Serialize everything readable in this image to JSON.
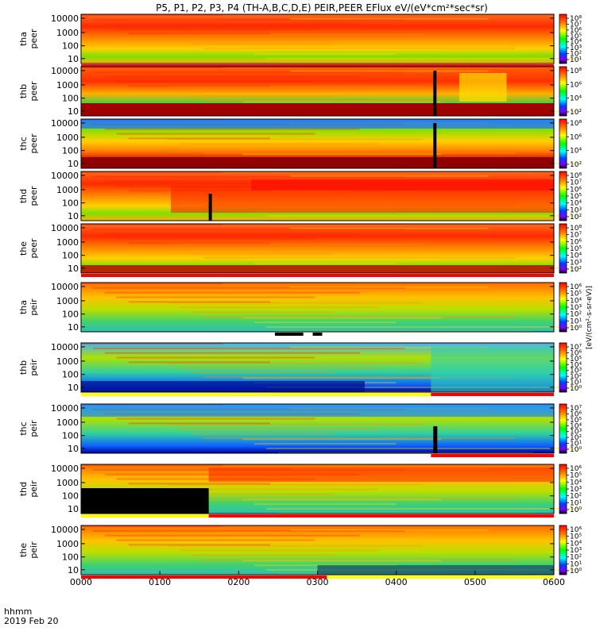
{
  "title": "P5, P1, P2, P3, P4 (TH-A,B,C,D,E) PEIR,PEER EFlux eV/(eV*cm²*sec*sr)",
  "footer": {
    "axis_label": "hhmm",
    "date": "2019 Feb 20"
  },
  "colorbar_label": "[eV/(cm²-s-sr-eV)]",
  "chart_data": {
    "type": "heatmap",
    "x": {
      "ticks": [
        "0000",
        "0100",
        "0200",
        "0300",
        "0400",
        "0500",
        "0600"
      ],
      "range": [
        0,
        360
      ],
      "unit": "minutes"
    },
    "panels": [
      {
        "line1": "tha",
        "line2": "peer",
        "yticks": [
          "10000",
          "1000",
          "100",
          "10"
        ],
        "colorbar_ticks": [
          "10⁸",
          "10⁷",
          "10⁶",
          "10⁵",
          "10⁴",
          "10³",
          "10²",
          "10¹"
        ],
        "status_bar": "red"
      },
      {
        "line1": "thb",
        "line2": "peer",
        "yticks": [
          "10000",
          "1000",
          "100",
          "10"
        ],
        "colorbar_ticks": [
          "10⁸",
          "10⁶",
          "10⁴",
          "10²"
        ],
        "status_bar": "none"
      },
      {
        "line1": "thc",
        "line2": "peer",
        "yticks": [
          "10000",
          "1000",
          "100",
          "10"
        ],
        "colorbar_ticks": [
          "10⁸",
          "10⁶",
          "10⁴",
          "10²"
        ],
        "status_bar": "none"
      },
      {
        "line1": "thd",
        "line2": "peer",
        "yticks": [
          "10000",
          "1000",
          "100",
          "10"
        ],
        "colorbar_ticks": [
          "10⁸",
          "10⁷",
          "10⁶",
          "10⁵",
          "10⁴",
          "10³",
          "10²"
        ],
        "status_bar": "none"
      },
      {
        "line1": "the",
        "line2": "peer",
        "yticks": [
          "10000",
          "1000",
          "100",
          "10"
        ],
        "colorbar_ticks": [
          "10⁸",
          "10⁷",
          "10⁶",
          "10⁵",
          "10⁴",
          "10³",
          "10²"
        ],
        "status_bar": "red"
      },
      {
        "line1": "tha",
        "line2": "peir",
        "yticks": [
          "10000",
          "1000",
          "100",
          "10"
        ],
        "colorbar_ticks": [
          "10⁶",
          "10⁵",
          "10⁴",
          "10³",
          "10²",
          "10¹",
          "10⁰"
        ],
        "status_bar": "white-black"
      },
      {
        "line1": "thb",
        "line2": "peir",
        "yticks": [
          "10000",
          "1000",
          "100",
          "10"
        ],
        "colorbar_ticks": [
          "10⁷",
          "10⁶",
          "10⁵",
          "10⁴",
          "10³",
          "10²",
          "10¹",
          "10⁰"
        ],
        "status_bar": "yellow-red"
      },
      {
        "line1": "thc",
        "line2": "peir",
        "yticks": [
          "10000",
          "1000",
          "100",
          "10"
        ],
        "colorbar_ticks": [
          "10⁷",
          "10⁶",
          "10⁵",
          "10⁴",
          "10³",
          "10²",
          "10¹",
          "10⁰"
        ],
        "status_bar": "red-right"
      },
      {
        "line1": "thd",
        "line2": "peir",
        "yticks": [
          "10000",
          "1000",
          "100",
          "10"
        ],
        "colorbar_ticks": [
          "10⁶",
          "10⁵",
          "10⁴",
          "10³",
          "10²",
          "10¹",
          "10⁰"
        ],
        "status_bar": "yellow-red"
      },
      {
        "line1": "the",
        "line2": "peir",
        "yticks": [
          "10000",
          "1000",
          "100",
          "10"
        ],
        "colorbar_ticks": [
          "10⁶",
          "10⁵",
          "10⁴",
          "10³",
          "10²",
          "10¹",
          "10⁰"
        ],
        "status_bar": "red-yellow"
      }
    ],
    "colors": {
      "low": "#000080",
      "mid": "#00ff00",
      "high": "#ff0000",
      "fill": "#000000"
    }
  }
}
